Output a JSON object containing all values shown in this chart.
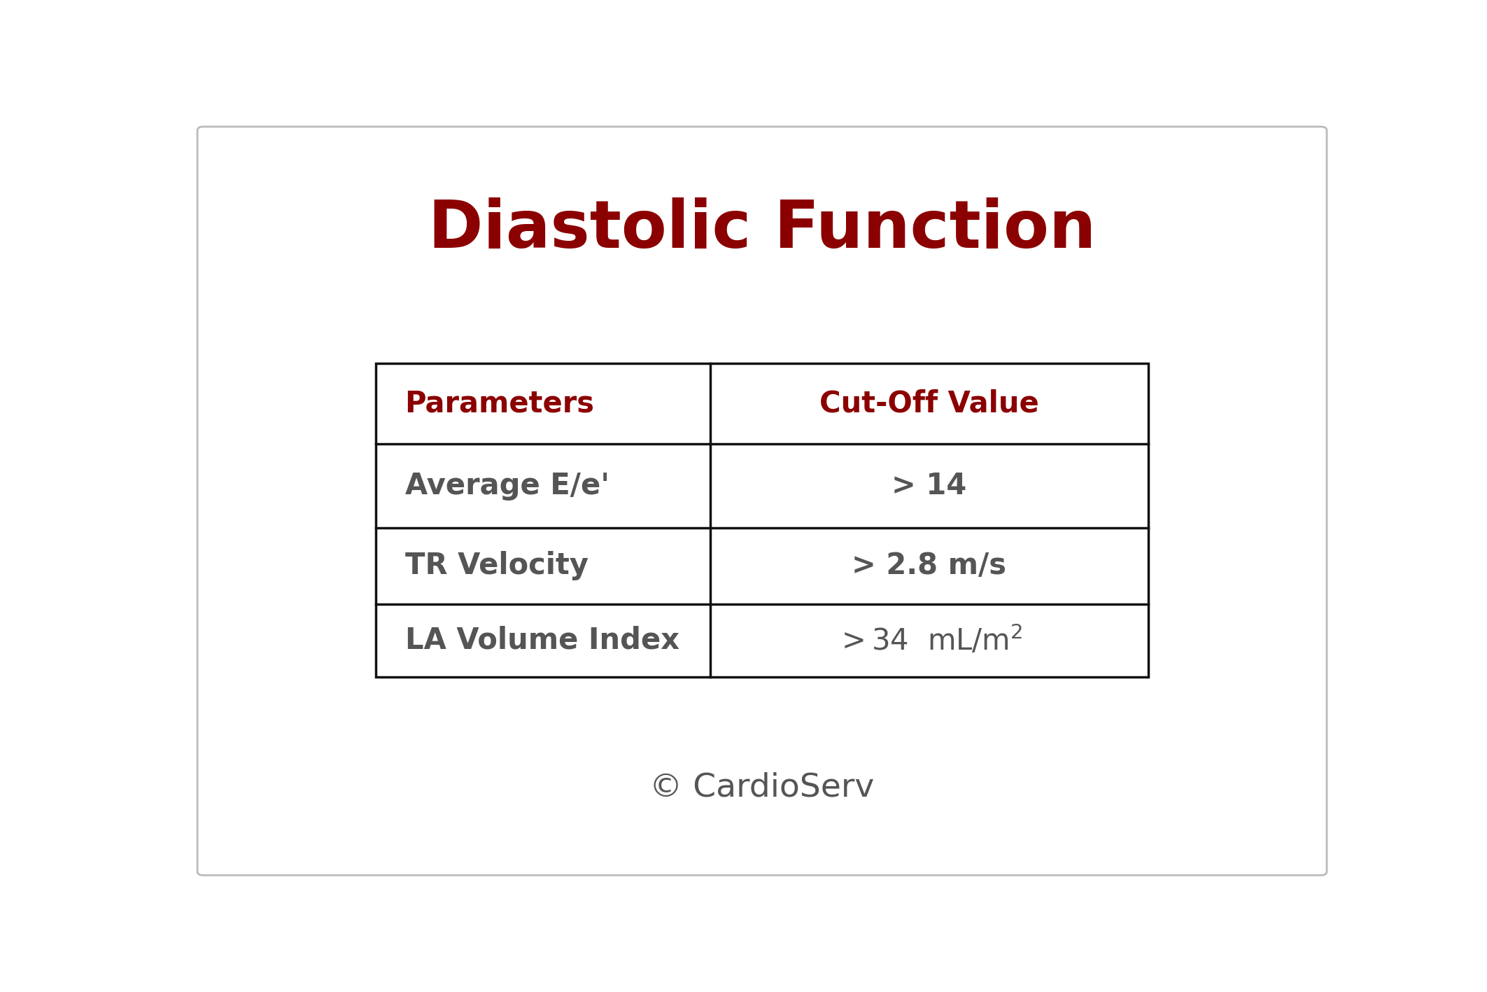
{
  "title": "Diastolic Function",
  "title_color": "#8B0000",
  "title_fontsize": 68,
  "title_fontstyle": "bold",
  "background_color": "#ffffff",
  "border_color": "#bbbbbb",
  "table_header": [
    "Parameters",
    "Cut-Off Value"
  ],
  "table_header_color": "#8B0000",
  "table_rows": [
    [
      "Average E/e'",
      "> 14"
    ],
    [
      "TR Velocity",
      "> 2.8 m/s"
    ],
    [
      "LA Volume Index",
      "> 34  mL/m"
    ]
  ],
  "table_text_color": "#555555",
  "table_line_color": "#111111",
  "table_header_fontsize": 30,
  "table_row_fontsize": 30,
  "copyright_text": "© CardioServ",
  "copyright_color": "#555555",
  "copyright_fontsize": 34
}
